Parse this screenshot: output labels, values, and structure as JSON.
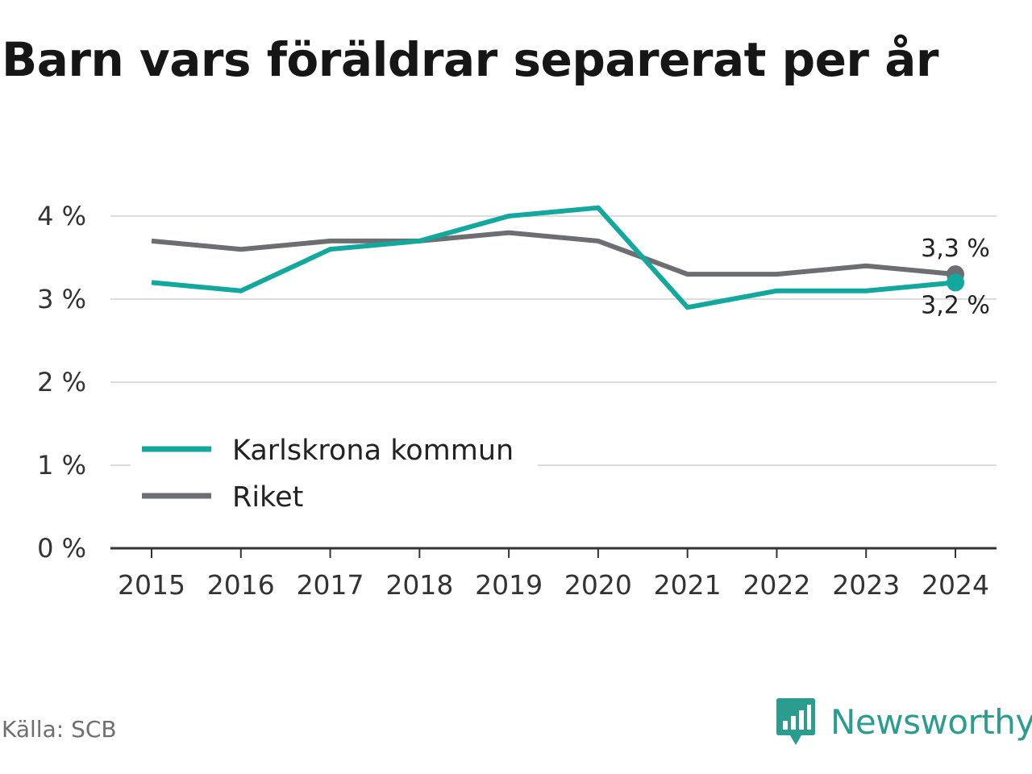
{
  "title": "Barn vars föräldrar separerat per år",
  "source": "Källa: SCB",
  "brand": "Newsworthy",
  "colors": {
    "karlskrona": "#13a89e",
    "riket": "#6d6e72",
    "grid": "#dcdcdc",
    "axis": "#333333",
    "brand": "#2a9d8f"
  },
  "chart_data": {
    "type": "line",
    "title": "Barn vars föräldrar separerat per år",
    "x": [
      "2015",
      "2016",
      "2017",
      "2018",
      "2019",
      "2020",
      "2021",
      "2022",
      "2023",
      "2024"
    ],
    "ylim": [
      0,
      4
    ],
    "yticks": [
      0,
      1,
      2,
      3,
      4
    ],
    "ytick_labels": [
      "0 %",
      "1 %",
      "2 %",
      "3 %",
      "4 %"
    ],
    "grid": true,
    "legend": "bottom-left",
    "series": [
      {
        "name": "Karlskrona kommun",
        "color": "#13a89e",
        "values": [
          3.2,
          3.1,
          3.6,
          3.7,
          4.0,
          4.1,
          2.9,
          3.1,
          3.1,
          3.2
        ],
        "end_label": "3,2 %"
      },
      {
        "name": "Riket",
        "color": "#6d6e72",
        "values": [
          3.7,
          3.6,
          3.7,
          3.7,
          3.8,
          3.7,
          3.3,
          3.3,
          3.4,
          3.3
        ],
        "end_label": "3,3 %"
      }
    ]
  }
}
